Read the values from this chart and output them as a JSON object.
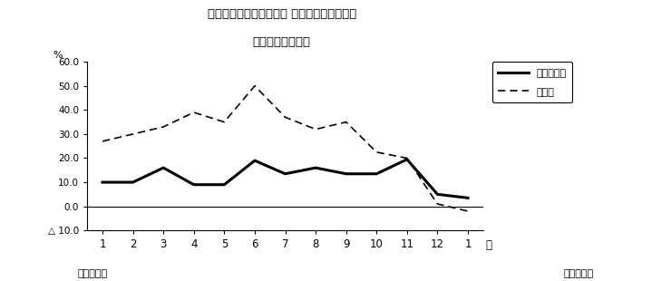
{
  "title_line1": "第２図　所定外労働時間 対前年同月比の推移",
  "title_line2": "（規模５人以上）",
  "x_labels": [
    "1",
    "2",
    "3",
    "4",
    "5",
    "6",
    "7",
    "8",
    "9",
    "10",
    "11",
    "12",
    "1"
  ],
  "x_values": [
    1,
    2,
    3,
    4,
    5,
    6,
    7,
    8,
    9,
    10,
    11,
    12,
    13
  ],
  "survey_total_y": [
    10.0,
    10.0,
    16.0,
    9.0,
    9.0,
    19.0,
    13.5,
    16.0,
    13.5,
    13.5,
    19.5,
    5.0,
    3.5
  ],
  "manufacturing_y": [
    27.0,
    30.0,
    33.0,
    39.0,
    35.0,
    50.0,
    37.0,
    32.0,
    35.0,
    22.5,
    20.0,
    1.0,
    -2.0
  ],
  "ylim_min": -10.0,
  "ylim_max": 60.0,
  "yticks": [
    -10.0,
    0.0,
    10.0,
    20.0,
    30.0,
    40.0,
    50.0,
    60.0
  ],
  "ytick_labels": [
    "△ 10.0",
    "0.0",
    "10.0",
    "20.0",
    "30.0",
    "40.0",
    "50.0",
    "60.0"
  ],
  "ylabel_text": "%",
  "xlabel_suffix": "月",
  "bottom_left_label": "平成２２年",
  "bottom_right_label": "平成２３年",
  "legend_solid": "調査産業計",
  "legend_dashed": "製造業",
  "line_color": "#000000",
  "background_color": "#ffffff",
  "zero_line_color": "#000000"
}
